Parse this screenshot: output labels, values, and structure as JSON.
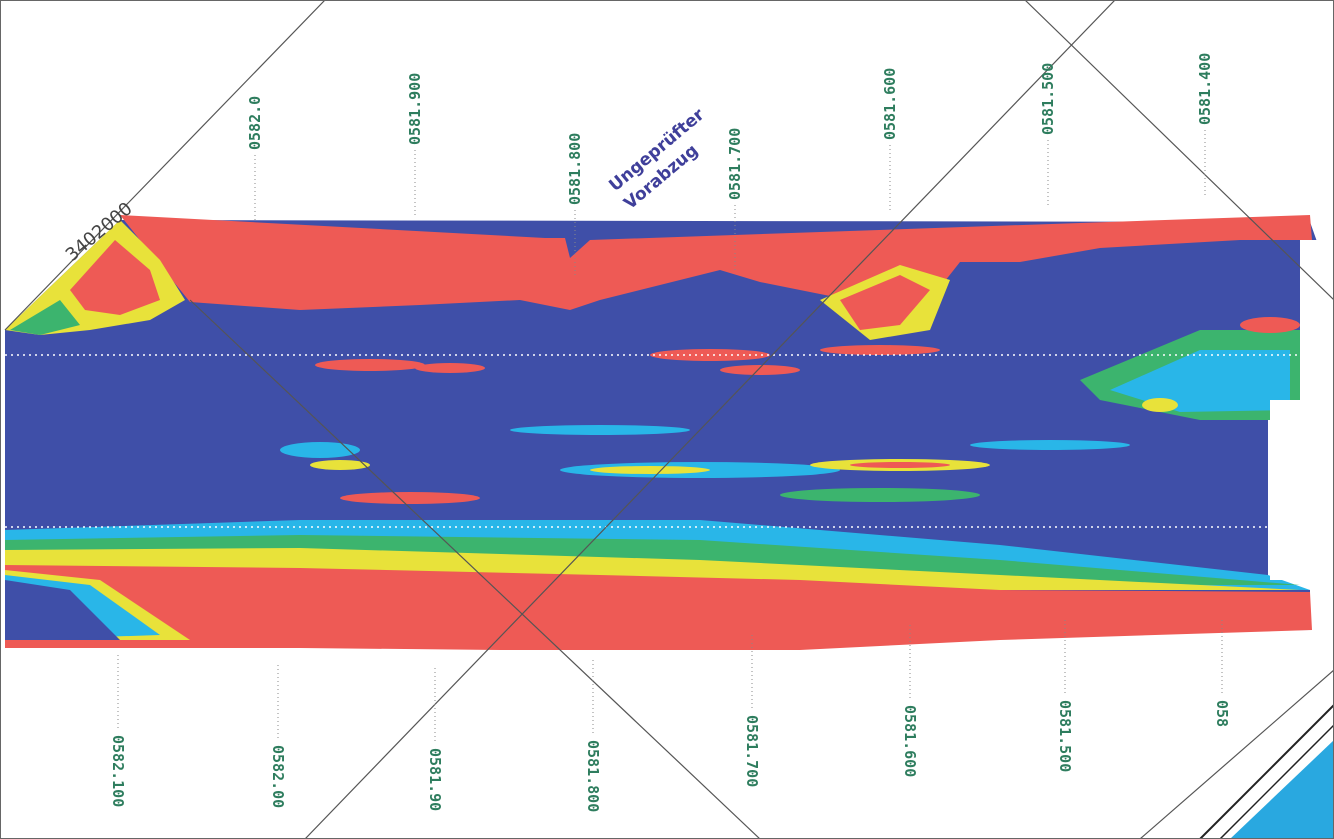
{
  "map": {
    "corner_label": "3402000",
    "watermark": [
      "Ungeprüfter",
      "Vorabzug"
    ],
    "top_labels": [
      "0582.0",
      "0581.900",
      "0581.800",
      "0581.700",
      "0581.600",
      "0581.500",
      "0581.400"
    ],
    "bottom_labels": [
      "0582.100",
      "0582.00",
      "0581.90",
      "0581.800",
      "0581.700",
      "0581.600",
      "0581.500",
      "058"
    ]
  }
}
